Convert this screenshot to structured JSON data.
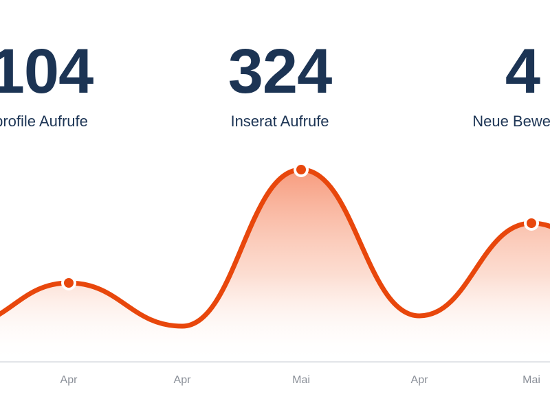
{
  "stats": [
    {
      "value": "104",
      "label": "profile Aufrufe"
    },
    {
      "value": "324",
      "label": "Inserat Aufrufe"
    },
    {
      "value": "4",
      "label": "Neue Bewerbu"
    }
  ],
  "colors": {
    "accent": "#e8470c",
    "text_dark": "#1c3454",
    "tick_text": "#8a8f98",
    "baseline": "#d8dbe0"
  },
  "chart_data": {
    "type": "area",
    "categories": [
      "Apr",
      "Apr",
      "Mai",
      "Apr",
      "Mai"
    ],
    "series": [
      {
        "values": [
          104,
          20,
          324,
          40,
          220
        ],
        "highlighted": [
          0,
          2,
          4
        ]
      }
    ],
    "ylim": [
      0,
      400
    ],
    "grid": false,
    "legend": "none"
  }
}
